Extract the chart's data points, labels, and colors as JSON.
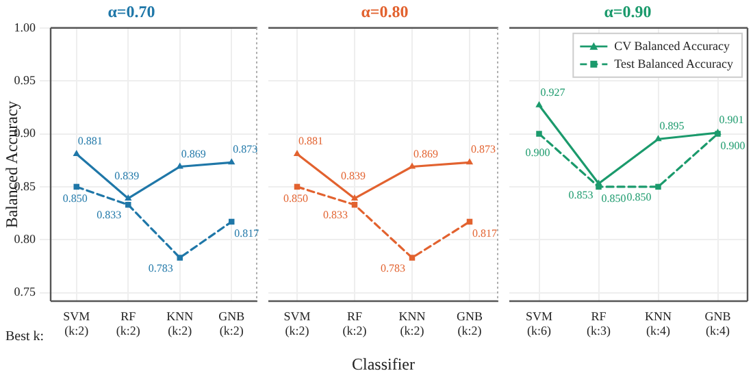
{
  "chart_data": [
    {
      "type": "line",
      "title": "α=0.70",
      "ylabel": "Balanced Accuracy",
      "categories": [
        "SVM\n(k:2)",
        "RF\n(k:2)",
        "KNN\n(k:2)",
        "GNB\n(k:2)"
      ],
      "ylim": [
        0.742,
        1.0
      ],
      "yticks": [
        0.75,
        {
          "value": 0.8,
          "label": "0.80"
        },
        0.85,
        {
          "value": 0.9,
          "label": "0.90"
        },
        0.95,
        {
          "value": 1.0,
          "label": "1.00"
        }
      ],
      "grid": true,
      "legend": false,
      "annotations": [
        "Best k:"
      ],
      "series": [
        {
          "color": "#1f77a8",
          "marker": "triangle",
          "line_style": "solid",
          "values": [
            0.881,
            0.839,
            0.869,
            0.873
          ],
          "value_labels": [
            "0.881",
            "0.839",
            "0.869",
            "0.873"
          ]
        },
        {
          "color": "#1f77a8",
          "marker": "square",
          "line_style": "dashed",
          "values": [
            0.85,
            0.833,
            0.783,
            0.817
          ],
          "value_labels": [
            "0.850",
            "0.833",
            "0.783",
            "0.817"
          ]
        }
      ]
    },
    {
      "type": "line",
      "title": "α=0.80",
      "xlabel": "Classifier",
      "categories": [
        "SVM\n(k:2)",
        "RF\n(k:2)",
        "KNN\n(k:2)",
        "GNB\n(k:2)"
      ],
      "ylim": [
        0.742,
        1.0
      ],
      "yticks": [
        0.75,
        0.8,
        0.85,
        0.9,
        0.95,
        1.0
      ],
      "grid": true,
      "legend": false,
      "tick_labels": "x",
      "series": [
        {
          "color": "#e2622f",
          "marker": "triangle",
          "line_style": "solid",
          "values": [
            0.881,
            0.839,
            0.869,
            0.873
          ],
          "value_labels": [
            "0.881",
            "0.839",
            "0.869",
            "0.873"
          ]
        },
        {
          "color": "#e2622f",
          "marker": "square",
          "line_style": "dashed",
          "values": [
            0.85,
            0.833,
            0.783,
            0.817
          ],
          "value_labels": [
            "0.850",
            "0.833",
            "0.783",
            "0.817"
          ]
        }
      ]
    },
    {
      "type": "line",
      "title": "α=0.90",
      "categories": [
        "SVM\n(k:6)",
        "RF\n(k:3)",
        "KNN\n(k:4)",
        "GNB\n(k:4)"
      ],
      "ylim": [
        0.742,
        1.0
      ],
      "yticks": [
        0.75,
        0.8,
        0.85,
        0.9,
        0.95,
        1.0
      ],
      "grid": true,
      "legend": "top right",
      "tick_labels": "x",
      "series": [
        {
          "name": "CV Balanced Accuracy",
          "color": "#1b9a6c",
          "marker": "triangle",
          "line_style": "solid",
          "values": [
            0.927,
            0.853,
            0.895,
            0.901
          ],
          "value_labels": [
            "0.927",
            "0.853",
            "0.895",
            "0.901"
          ]
        },
        {
          "name": "Test Balanced Accuracy",
          "color": "#1b9a6c",
          "marker": "square",
          "line_style": "dashed",
          "values": [
            0.9,
            0.85,
            0.85,
            0.9
          ],
          "value_labels": [
            "0.900",
            "0.850",
            "0.850",
            "0.900"
          ]
        }
      ]
    }
  ]
}
